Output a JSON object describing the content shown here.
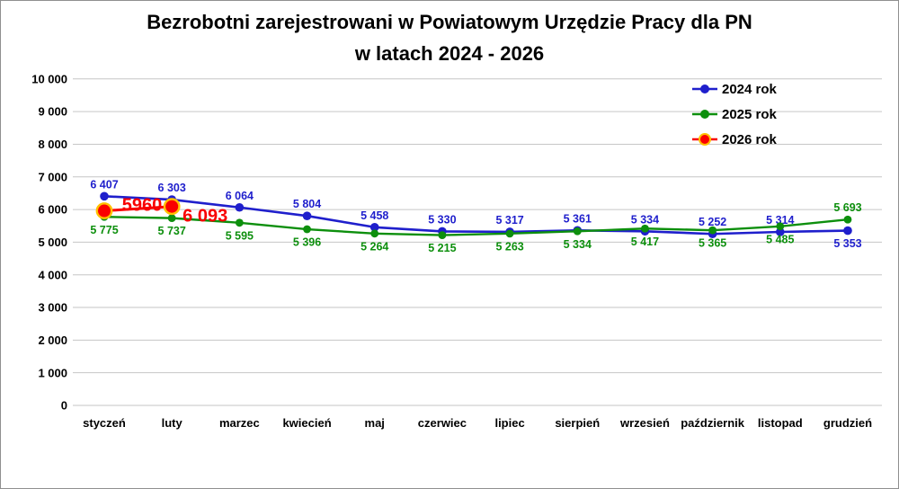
{
  "title": {
    "line1": "Bezrobotni zarejestrowani w Powiatowym Urzędzie Pracy dla PN",
    "line2": "w latach 2024 - 2026"
  },
  "chart_data": {
    "type": "line",
    "categories": [
      "styczeń",
      "luty",
      "marzec",
      "kwiecień",
      "maj",
      "czerwiec",
      "lipiec",
      "sierpień",
      "wrzesień",
      "październik",
      "listopad",
      "grudzień"
    ],
    "y_tick_labels": [
      "10 000",
      "9 000",
      "8 000",
      "7 000",
      "6 000",
      "5 000",
      "4 000",
      "3 000",
      "2 000",
      "1 000",
      "0"
    ],
    "ylim": [
      0,
      10000
    ],
    "y_step": 1000,
    "grid": true,
    "legend_position": "top-right",
    "series": [
      {
        "name": "2024 rok",
        "color": "#1F1FCC",
        "marker_fill": "#1F1FCC",
        "marker_ring": "#1F1FCC",
        "marker_radius": 4.8,
        "line_width": 2.6,
        "values": [
          6407,
          6303,
          6064,
          5804,
          5458,
          5330,
          5317,
          5361,
          5334,
          5252,
          5314,
          5353
        ],
        "labels": [
          "6 407",
          "6 303",
          "6 064",
          "5 804",
          "5 458",
          "5 330",
          "5 317",
          "5 361",
          "5 334",
          "5 252",
          "5 314",
          "5 353"
        ],
        "label_font_size": 12.5,
        "label_side": "above",
        "label_side_overrides": {
          "11": "below"
        }
      },
      {
        "name": "2025 rok",
        "color": "#0D8F0D",
        "marker_fill": "#0D8F0D",
        "marker_ring": "#0D8F0D",
        "marker_radius": 4.4,
        "line_width": 2.4,
        "values": [
          5775,
          5737,
          5595,
          5396,
          5264,
          5215,
          5263,
          5334,
          5417,
          5365,
          5485,
          5693
        ],
        "labels": [
          "5 775",
          "5 737",
          "5 595",
          "5 396",
          "5 264",
          "5 215",
          "5 263",
          "5 334",
          "5 417",
          "5 365",
          "5 485",
          "5 693"
        ],
        "label_font_size": 12.5,
        "label_side": "below",
        "label_side_overrides": {
          "11": "above"
        }
      },
      {
        "name": "2026 rok",
        "color": "#F80000",
        "marker_fill": "#FA0000",
        "marker_ring": "#FFC000",
        "marker_radius": 8.2,
        "line_width": 3,
        "values": [
          5960,
          6093
        ],
        "labels": [
          "5960",
          "6 093"
        ],
        "label_font_size": 20,
        "label_side": "custom",
        "label_offsets": [
          {
            "dx": 42,
            "dy": -7
          },
          {
            "dx": 37,
            "dy": 10
          }
        ]
      }
    ]
  },
  "colors": {
    "gridline": "#C6C6C6",
    "axis_text": "#000000",
    "legend_text": "#000000",
    "background": "#FFFFFF"
  }
}
